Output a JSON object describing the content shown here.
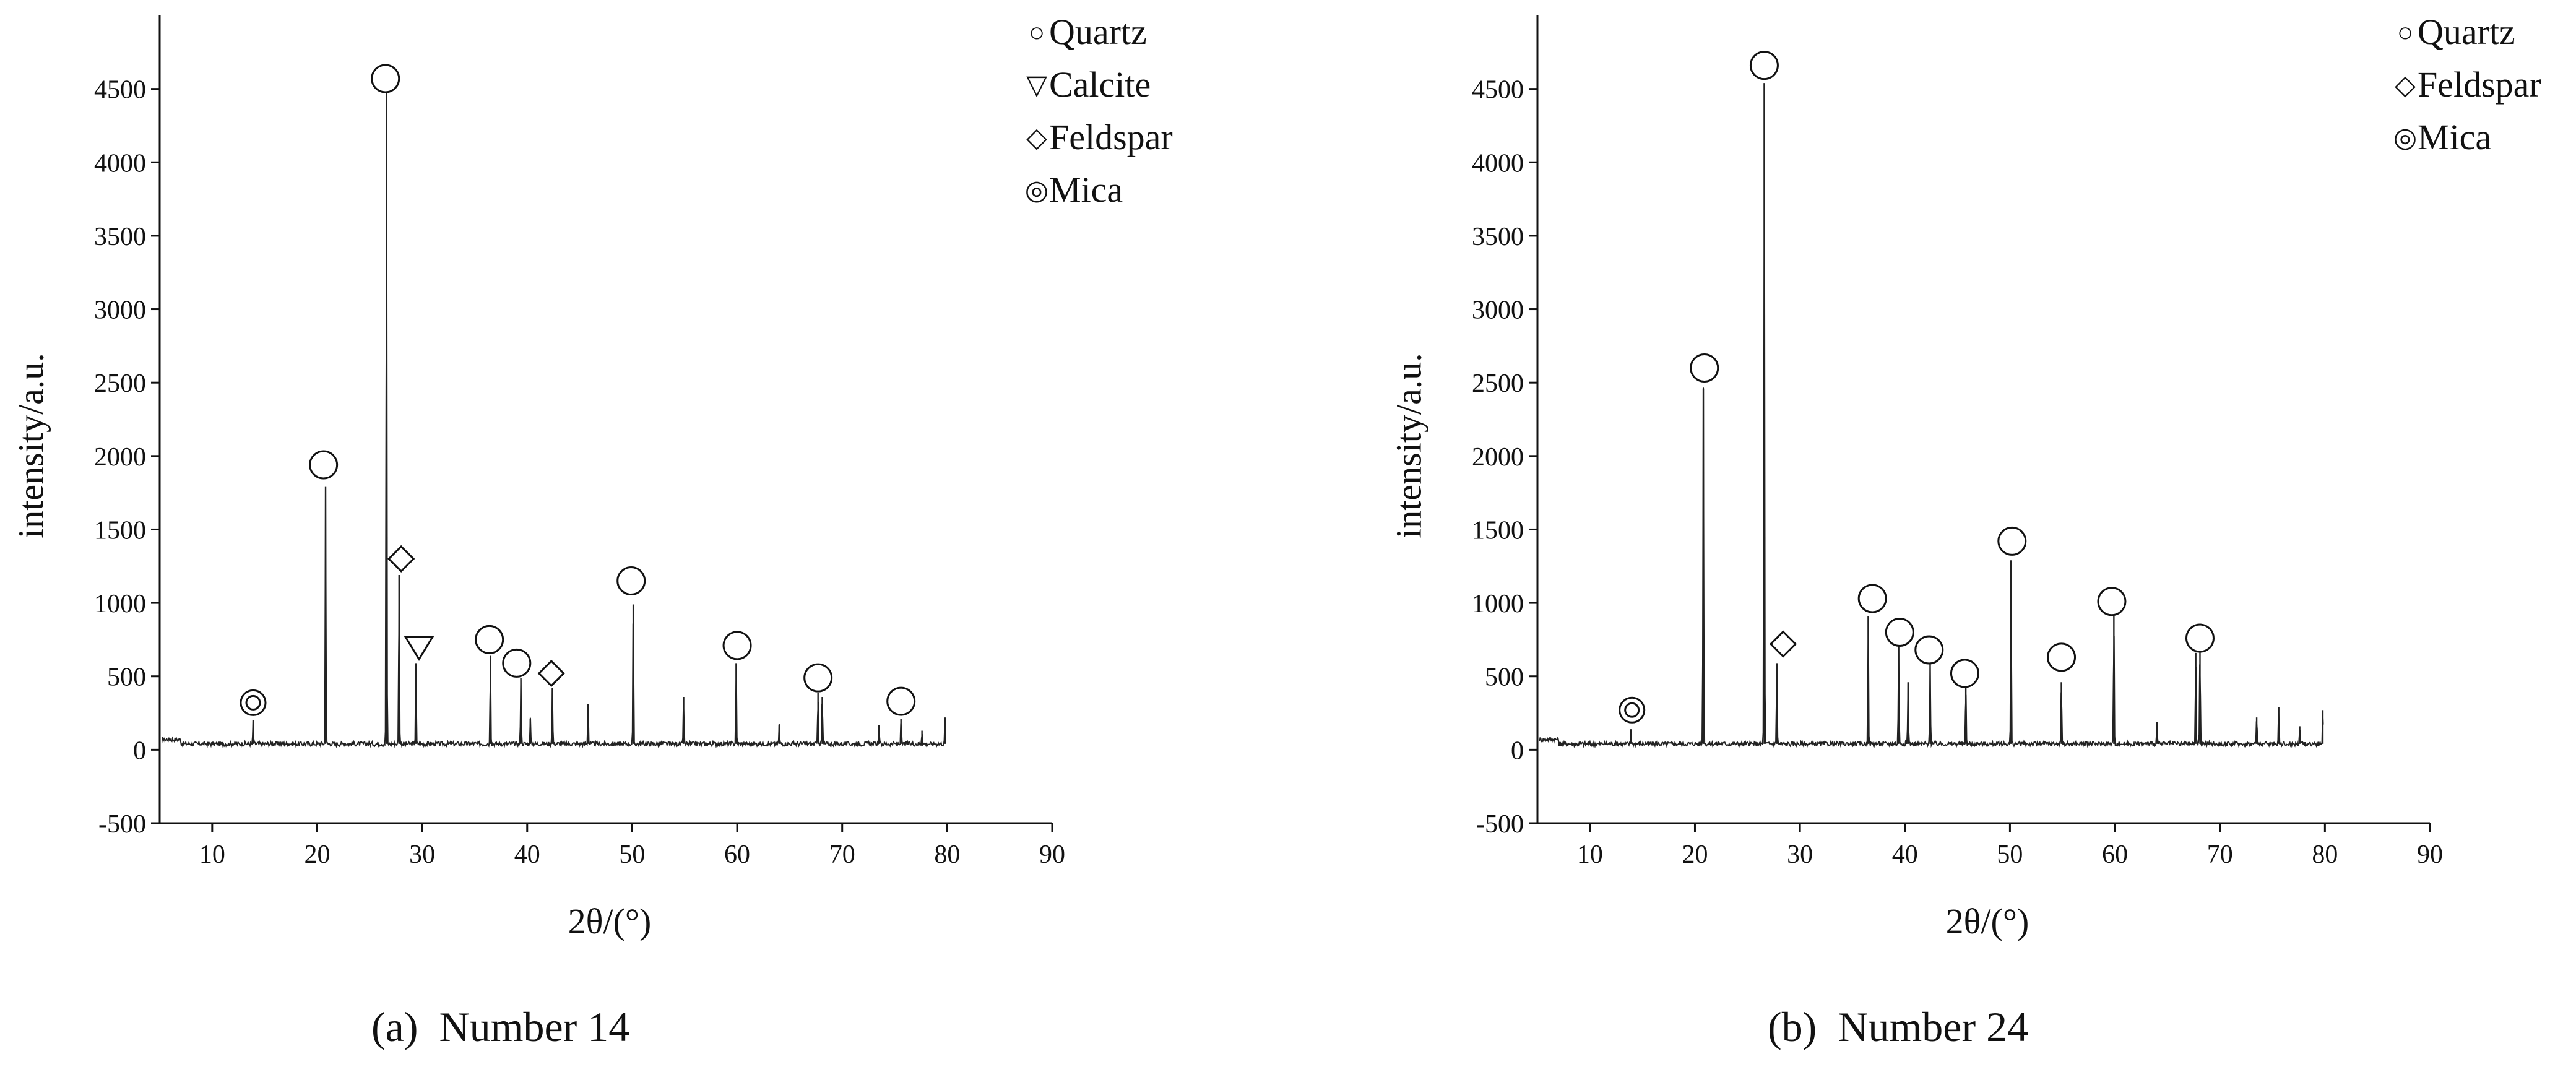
{
  "chart_data": [
    {
      "type": "line",
      "caption": "(a)  Number 14",
      "xlabel": "2θ/(°)",
      "ylabel": "intensity/a.u.",
      "xlim": [
        5,
        90
      ],
      "ylim": [
        -500,
        5000
      ],
      "xticks": [
        "10",
        "20",
        "30",
        "40",
        "50",
        "60",
        "70",
        "80",
        "90"
      ],
      "yticks": [
        "-500",
        "0",
        "500",
        "1000",
        "1500",
        "2000",
        "2500",
        "3000",
        "3500",
        "4000",
        "4500"
      ],
      "legend": [
        {
          "symbol": "○",
          "label": "Quartz"
        },
        {
          "symbol": "▽",
          "label": "Calcite"
        },
        {
          "symbol": "◇",
          "label": "Feldspar"
        },
        {
          "symbol": "◎",
          "label": "Mica"
        }
      ],
      "peaks": [
        {
          "x": 13.9,
          "y": 160
        },
        {
          "x": 20.8,
          "y": 1750
        },
        {
          "x": 26.6,
          "y": 4450
        },
        {
          "x": 27.8,
          "y": 1150
        },
        {
          "x": 29.4,
          "y": 550
        },
        {
          "x": 36.5,
          "y": 600
        },
        {
          "x": 39.4,
          "y": 450
        },
        {
          "x": 40.3,
          "y": 170
        },
        {
          "x": 42.4,
          "y": 380
        },
        {
          "x": 45.8,
          "y": 270
        },
        {
          "x": 50.1,
          "y": 950
        },
        {
          "x": 54.9,
          "y": 320
        },
        {
          "x": 59.9,
          "y": 550
        },
        {
          "x": 64.0,
          "y": 130
        },
        {
          "x": 67.7,
          "y": 350
        },
        {
          "x": 68.1,
          "y": 320
        },
        {
          "x": 73.5,
          "y": 130
        },
        {
          "x": 75.6,
          "y": 170
        },
        {
          "x": 77.6,
          "y": 90
        },
        {
          "x": 79.8,
          "y": 180
        }
      ],
      "markers": [
        {
          "phase": "Mica",
          "x": 13.9,
          "y": 320
        },
        {
          "phase": "Quartz",
          "x": 20.6,
          "y": 1940
        },
        {
          "phase": "Quartz",
          "x": 26.5,
          "y": 4570
        },
        {
          "phase": "Feldspar",
          "x": 28.0,
          "y": 1300
        },
        {
          "phase": "Calcite",
          "x": 29.7,
          "y": 700
        },
        {
          "phase": "Quartz",
          "x": 36.4,
          "y": 750
        },
        {
          "phase": "Quartz",
          "x": 39.0,
          "y": 590
        },
        {
          "phase": "Feldspar",
          "x": 42.3,
          "y": 520
        },
        {
          "phase": "Quartz",
          "x": 49.9,
          "y": 1150
        },
        {
          "phase": "Quartz",
          "x": 60.0,
          "y": 710
        },
        {
          "phase": "Quartz",
          "x": 67.7,
          "y": 490
        },
        {
          "phase": "Quartz",
          "x": 75.6,
          "y": 330
        }
      ]
    },
    {
      "type": "line",
      "caption": "(b)  Number 24",
      "xlabel": "2θ/(°)",
      "ylabel": "intensity/a.u.",
      "xlim": [
        5,
        90
      ],
      "ylim": [
        -500,
        5000
      ],
      "xticks": [
        "10",
        "20",
        "30",
        "40",
        "50",
        "60",
        "70",
        "80",
        "90"
      ],
      "yticks": [
        "-500",
        "0",
        "500",
        "1000",
        "1500",
        "2000",
        "2500",
        "3000",
        "3500",
        "4000",
        "4500"
      ],
      "legend": [
        {
          "symbol": "○",
          "label": "Quartz"
        },
        {
          "symbol": "◇",
          "label": "Feldspar"
        },
        {
          "symbol": "◎",
          "label": "Mica"
        }
      ],
      "peaks": [
        {
          "x": 13.9,
          "y": 100
        },
        {
          "x": 20.8,
          "y": 2420
        },
        {
          "x": 26.6,
          "y": 4500
        },
        {
          "x": 27.8,
          "y": 550
        },
        {
          "x": 36.5,
          "y": 870
        },
        {
          "x": 39.4,
          "y": 700
        },
        {
          "x": 40.3,
          "y": 420
        },
        {
          "x": 42.4,
          "y": 550
        },
        {
          "x": 45.8,
          "y": 400
        },
        {
          "x": 50.1,
          "y": 1250
        },
        {
          "x": 54.9,
          "y": 420
        },
        {
          "x": 59.9,
          "y": 870
        },
        {
          "x": 64.0,
          "y": 150
        },
        {
          "x": 67.7,
          "y": 620
        },
        {
          "x": 68.1,
          "y": 640
        },
        {
          "x": 73.5,
          "y": 180
        },
        {
          "x": 75.6,
          "y": 250
        },
        {
          "x": 77.6,
          "y": 120
        },
        {
          "x": 79.8,
          "y": 230
        }
      ],
      "markers": [
        {
          "phase": "Mica",
          "x": 14.0,
          "y": 270
        },
        {
          "phase": "Quartz",
          "x": 20.9,
          "y": 2600
        },
        {
          "phase": "Quartz",
          "x": 26.6,
          "y": 4660
        },
        {
          "phase": "Feldspar",
          "x": 28.4,
          "y": 720
        },
        {
          "phase": "Quartz",
          "x": 36.9,
          "y": 1030
        },
        {
          "phase": "Quartz",
          "x": 39.5,
          "y": 800
        },
        {
          "phase": "Quartz",
          "x": 42.3,
          "y": 680
        },
        {
          "phase": "Quartz",
          "x": 45.7,
          "y": 520
        },
        {
          "phase": "Quartz",
          "x": 50.2,
          "y": 1420
        },
        {
          "phase": "Quartz",
          "x": 54.9,
          "y": 630
        },
        {
          "phase": "Quartz",
          "x": 59.7,
          "y": 1010
        },
        {
          "phase": "Quartz",
          "x": 68.1,
          "y": 760
        }
      ]
    }
  ]
}
